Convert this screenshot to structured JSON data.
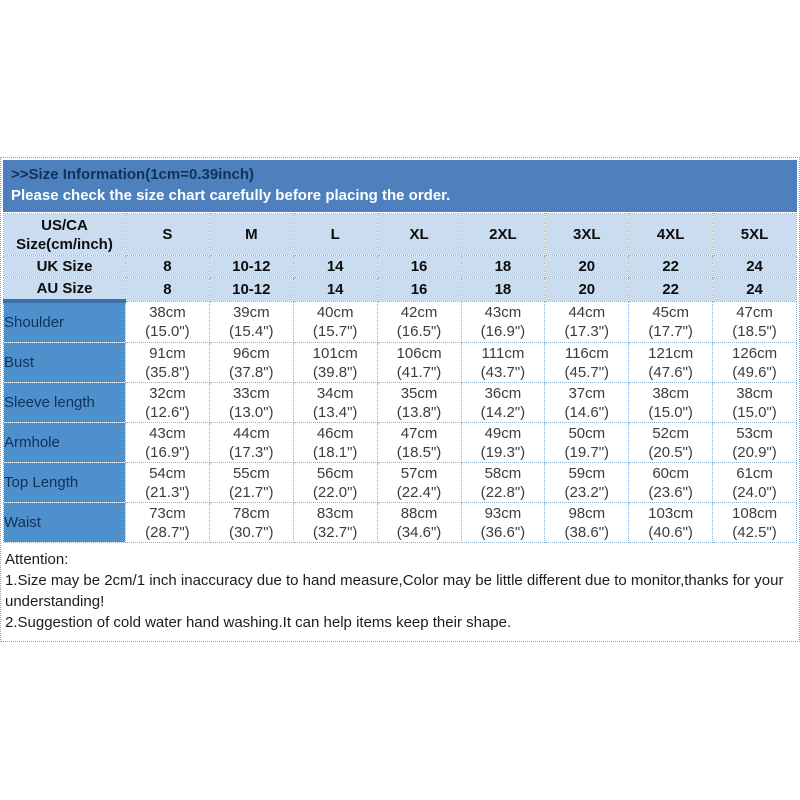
{
  "header": {
    "title": ">>Size Information(1cm=0.39inch)",
    "subtitle": "Please check the size chart carefully before placing the order."
  },
  "size_table": {
    "corner_line1": "US/CA",
    "corner_line2": "Size(cm/inch)",
    "columns": [
      "S",
      "M",
      "L",
      "XL",
      "2XL",
      "3XL",
      "4XL",
      "5XL"
    ],
    "uk_row": {
      "label": "UK Size",
      "values": [
        "8",
        "10-12",
        "14",
        "16",
        "18",
        "20",
        "22",
        "24"
      ]
    },
    "au_row": {
      "label": "AU Size",
      "values": [
        "8",
        "10-12",
        "14",
        "16",
        "18",
        "20",
        "22",
        "24"
      ]
    },
    "measurement_rows": [
      {
        "label": "Shoulder",
        "cm": [
          "38cm",
          "39cm",
          "40cm",
          "42cm",
          "43cm",
          "44cm",
          "45cm",
          "47cm"
        ],
        "inch": [
          "(15.0\")",
          "(15.4\")",
          "(15.7\")",
          "(16.5\")",
          "(16.9\")",
          "(17.3\")",
          "(17.7\")",
          "(18.5\")"
        ]
      },
      {
        "label": "Bust",
        "cm": [
          "91cm",
          "96cm",
          "101cm",
          "106cm",
          "111cm",
          "116cm",
          "121cm",
          "126cm"
        ],
        "inch": [
          "(35.8\")",
          "(37.8\")",
          "(39.8\")",
          "(41.7\")",
          "(43.7\")",
          "(45.7\")",
          "(47.6\")",
          "(49.6\")"
        ]
      },
      {
        "label": "Sleeve length",
        "cm": [
          "32cm",
          "33cm",
          "34cm",
          "35cm",
          "36cm",
          "37cm",
          "38cm",
          "38cm"
        ],
        "inch": [
          "(12.6\")",
          "(13.0\")",
          "(13.4\")",
          "(13.8\")",
          "(14.2\")",
          "(14.6\")",
          "(15.0\")",
          "(15.0\")"
        ]
      },
      {
        "label": "Armhole",
        "cm": [
          "43cm",
          "44cm",
          "46cm",
          "47cm",
          "49cm",
          "50cm",
          "52cm",
          "53cm"
        ],
        "inch": [
          "(16.9\")",
          "(17.3\")",
          "(18.1\")",
          "(18.5\")",
          "(19.3\")",
          "(19.7\")",
          "(20.5\")",
          "(20.9\")"
        ]
      },
      {
        "label": "Top Length",
        "cm": [
          "54cm",
          "55cm",
          "56cm",
          "57cm",
          "58cm",
          "59cm",
          "60cm",
          "61cm"
        ],
        "inch": [
          "(21.3\")",
          "(21.7\")",
          "(22.0\")",
          "(22.4\")",
          "(22.8\")",
          "(23.2\")",
          "(23.6\")",
          "(24.0\")"
        ]
      },
      {
        "label": "Waist",
        "cm": [
          "73cm",
          "78cm",
          "83cm",
          "88cm",
          "93cm",
          "98cm",
          "103cm",
          "108cm"
        ],
        "inch": [
          "(28.7\")",
          "(30.7\")",
          "(32.7\")",
          "(34.6\")",
          "(36.6\")",
          "(38.6\")",
          "(40.6\")",
          "(42.5\")"
        ]
      }
    ]
  },
  "attention": {
    "title": "Attention:",
    "line1": "1.Size may be 2cm/1 inch inaccuracy due to hand measure,Color may be little different due to monitor,thanks for your understanding!",
    "line2": "2.Suggestion of cold water hand washing.It can help items keep their shape."
  },
  "colors": {
    "band_blue": "#4d80bd",
    "header_light_blue": "#c9dcf0",
    "label_blue": "#4e90cc",
    "navy_text": "#12325c",
    "accent_line": "#3f72ad",
    "dotted_border": "#8fb2d4"
  }
}
